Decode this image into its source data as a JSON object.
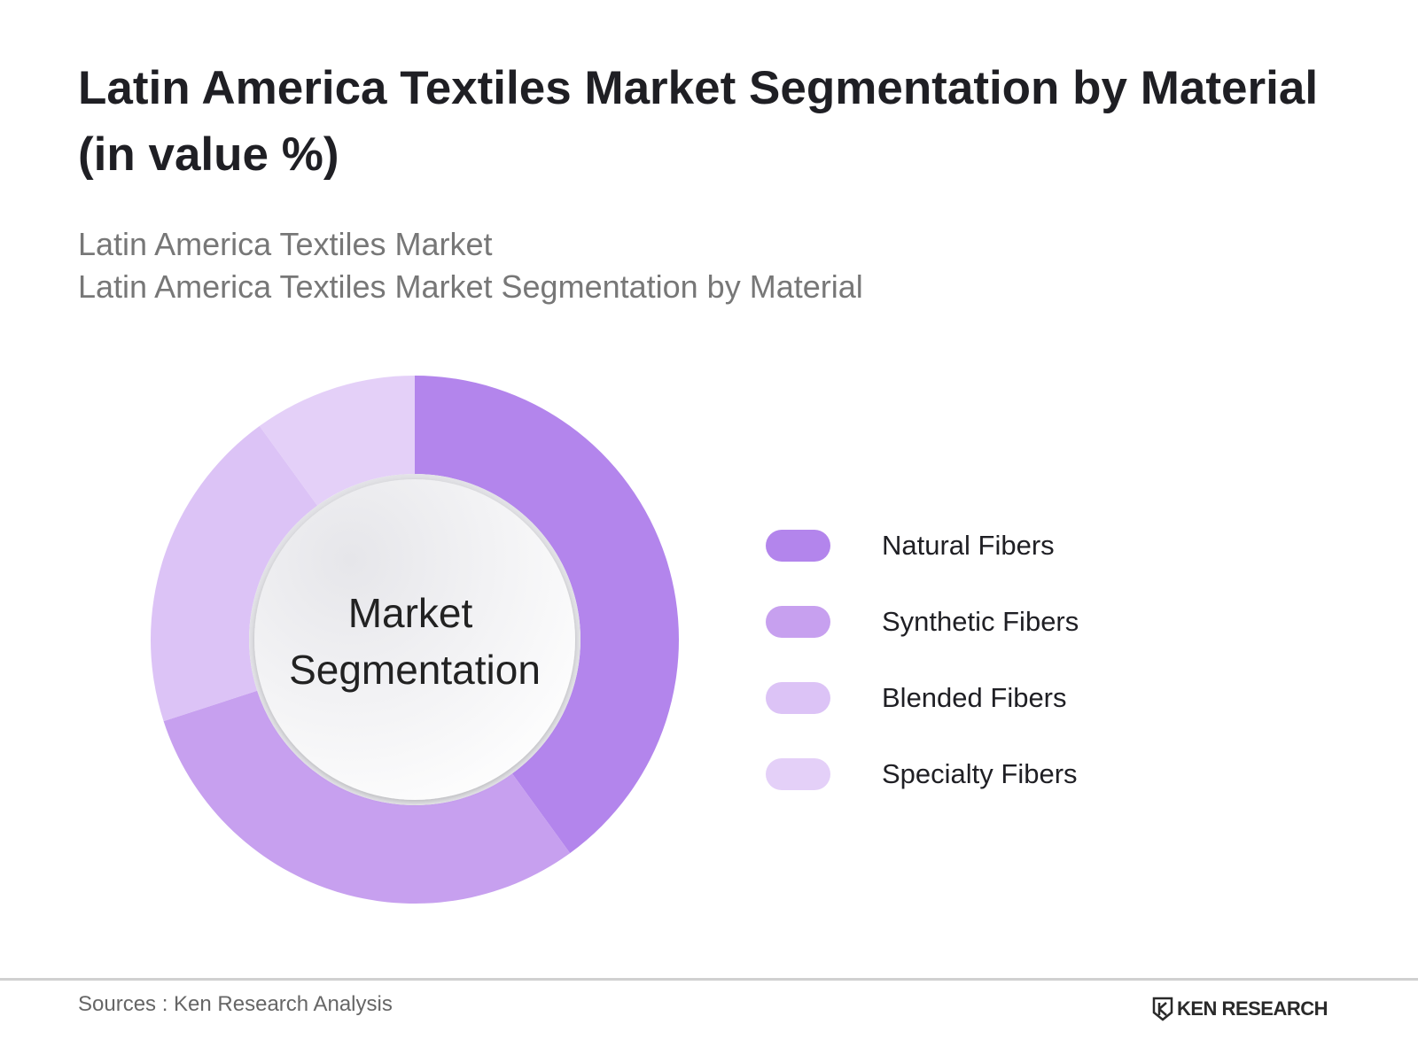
{
  "header": {
    "title": "Latin America Textiles Market Segmentation by Material (in value %)",
    "subtitle_line1": "Latin America Textiles Market",
    "subtitle_line2": "Latin America Textiles Market Segmentation by Material"
  },
  "chart_data": {
    "type": "pie",
    "variant": "donut",
    "center_label_line1": "Market",
    "center_label_line2": "Segmentation",
    "categories": [
      "Natural Fibers",
      "Synthetic Fibers",
      "Blended Fibers",
      "Specialty Fibers"
    ],
    "values": [
      40,
      30,
      20,
      10
    ],
    "colors": [
      "#b385ec",
      "#c7a0ef",
      "#dcc3f6",
      "#e4d0f8"
    ],
    "legend_position": "right"
  },
  "footer": {
    "sources": "Sources : Ken Research Analysis",
    "logo_text": "KEN RESEARCH",
    "logo_icon": "ken-research-logo-icon"
  }
}
